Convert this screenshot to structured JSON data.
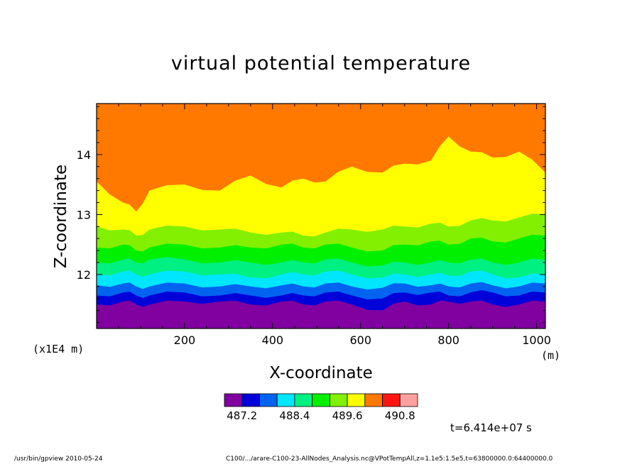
{
  "chart_data": {
    "type": "contour",
    "title": "virtual potential temperature",
    "xlabel": "X-coordinate",
    "ylabel": "Z-coordinate",
    "x_unit": "(m)",
    "y_unit": "(x1E4 m)",
    "xlim": [
      0,
      1020
    ],
    "ylim": [
      11.1,
      14.85
    ],
    "x_ticks": [
      200,
      400,
      600,
      800,
      1000
    ],
    "y_ticks": [
      12,
      13,
      14
    ],
    "x_tick_labels": [
      "200",
      "400",
      "600",
      "800",
      "1000"
    ],
    "y_tick_labels": [
      "12",
      "13",
      "14"
    ],
    "colorbar": {
      "levels": [
        487.2,
        487.6,
        488.0,
        488.4,
        488.8,
        489.2,
        489.6,
        490.0,
        490.4,
        490.8
      ],
      "tick_labels": [
        "487.2",
        "488.4",
        "489.6",
        "490.8"
      ],
      "colors": [
        "#8000a0",
        "#0000d8",
        "#0064f0",
        "#00e6ff",
        "#00f082",
        "#00f000",
        "#82f000",
        "#ffff00",
        "#ff7800",
        "#ff1414",
        "#ffa0a0"
      ]
    },
    "boundaries": {
      "x": [
        0,
        60,
        90,
        120,
        200,
        280,
        350,
        420,
        470,
        520,
        580,
        650,
        700,
        760,
        800,
        850,
        900,
        960,
        1020
      ],
      "levels": [
        {
          "from": "#8000a0",
          "to": "#0000d8",
          "z": [
            11.5,
            11.55,
            11.5,
            11.5,
            11.55,
            11.55,
            11.5,
            11.55,
            11.5,
            11.55,
            11.5,
            11.4,
            11.55,
            11.5,
            11.55,
            11.55,
            11.5,
            11.5,
            11.55
          ]
        },
        {
          "from": "#0000d8",
          "to": "#0064f0",
          "z": [
            11.65,
            11.7,
            11.65,
            11.65,
            11.7,
            11.65,
            11.65,
            11.65,
            11.65,
            11.7,
            11.65,
            11.6,
            11.7,
            11.7,
            11.65,
            11.7,
            11.7,
            11.65,
            11.7
          ]
        },
        {
          "from": "#0064f0",
          "to": "#00e6ff",
          "z": [
            11.82,
            11.85,
            11.8,
            11.8,
            11.85,
            11.8,
            11.8,
            11.82,
            11.8,
            11.85,
            11.8,
            11.78,
            11.85,
            11.82,
            11.8,
            11.85,
            11.82,
            11.8,
            11.85
          ]
        },
        {
          "from": "#00e6ff",
          "to": "#00f082",
          "z": [
            12.0,
            12.05,
            12.0,
            12.0,
            12.05,
            12.0,
            11.95,
            12.0,
            12.0,
            12.05,
            12.0,
            11.95,
            12.0,
            12.0,
            11.98,
            12.05,
            12.0,
            11.95,
            12.0
          ]
        },
        {
          "from": "#00f082",
          "to": "#00f000",
          "z": [
            12.2,
            12.25,
            12.2,
            12.25,
            12.25,
            12.2,
            12.2,
            12.2,
            12.2,
            12.25,
            12.2,
            12.15,
            12.2,
            12.2,
            12.2,
            12.25,
            12.2,
            12.2,
            12.25
          ]
        },
        {
          "from": "#00f000",
          "to": "#82f000",
          "z": [
            12.45,
            12.5,
            12.4,
            12.45,
            12.5,
            12.45,
            12.45,
            12.5,
            12.45,
            12.5,
            12.45,
            12.4,
            12.5,
            12.55,
            12.5,
            12.6,
            12.55,
            12.6,
            12.65
          ]
        },
        {
          "from": "#82f000",
          "to": "#ffff00",
          "z": [
            12.8,
            12.75,
            12.65,
            12.75,
            12.8,
            12.75,
            12.7,
            12.7,
            12.65,
            12.7,
            12.75,
            12.75,
            12.8,
            12.85,
            12.8,
            12.9,
            12.9,
            12.95,
            13.0
          ]
        },
        {
          "from": "#ffff00",
          "to": "#ff7800",
          "z": [
            13.55,
            13.2,
            13.05,
            13.4,
            13.5,
            13.4,
            13.65,
            13.45,
            13.6,
            13.55,
            13.8,
            13.7,
            13.85,
            13.9,
            14.3,
            14.05,
            13.95,
            14.05,
            13.7
          ]
        }
      ]
    }
  },
  "labels": {
    "timestamp": "t=6.414e+07 s",
    "footer_left": "/usr/bin/gpview   2010-05-24",
    "footer_right": "C100/.../arare-C100-23-AllNodes_Analysis.nc@VPotTempAll,z=1.1e5:1.5e5,t=63800000.0:64400000.0"
  }
}
